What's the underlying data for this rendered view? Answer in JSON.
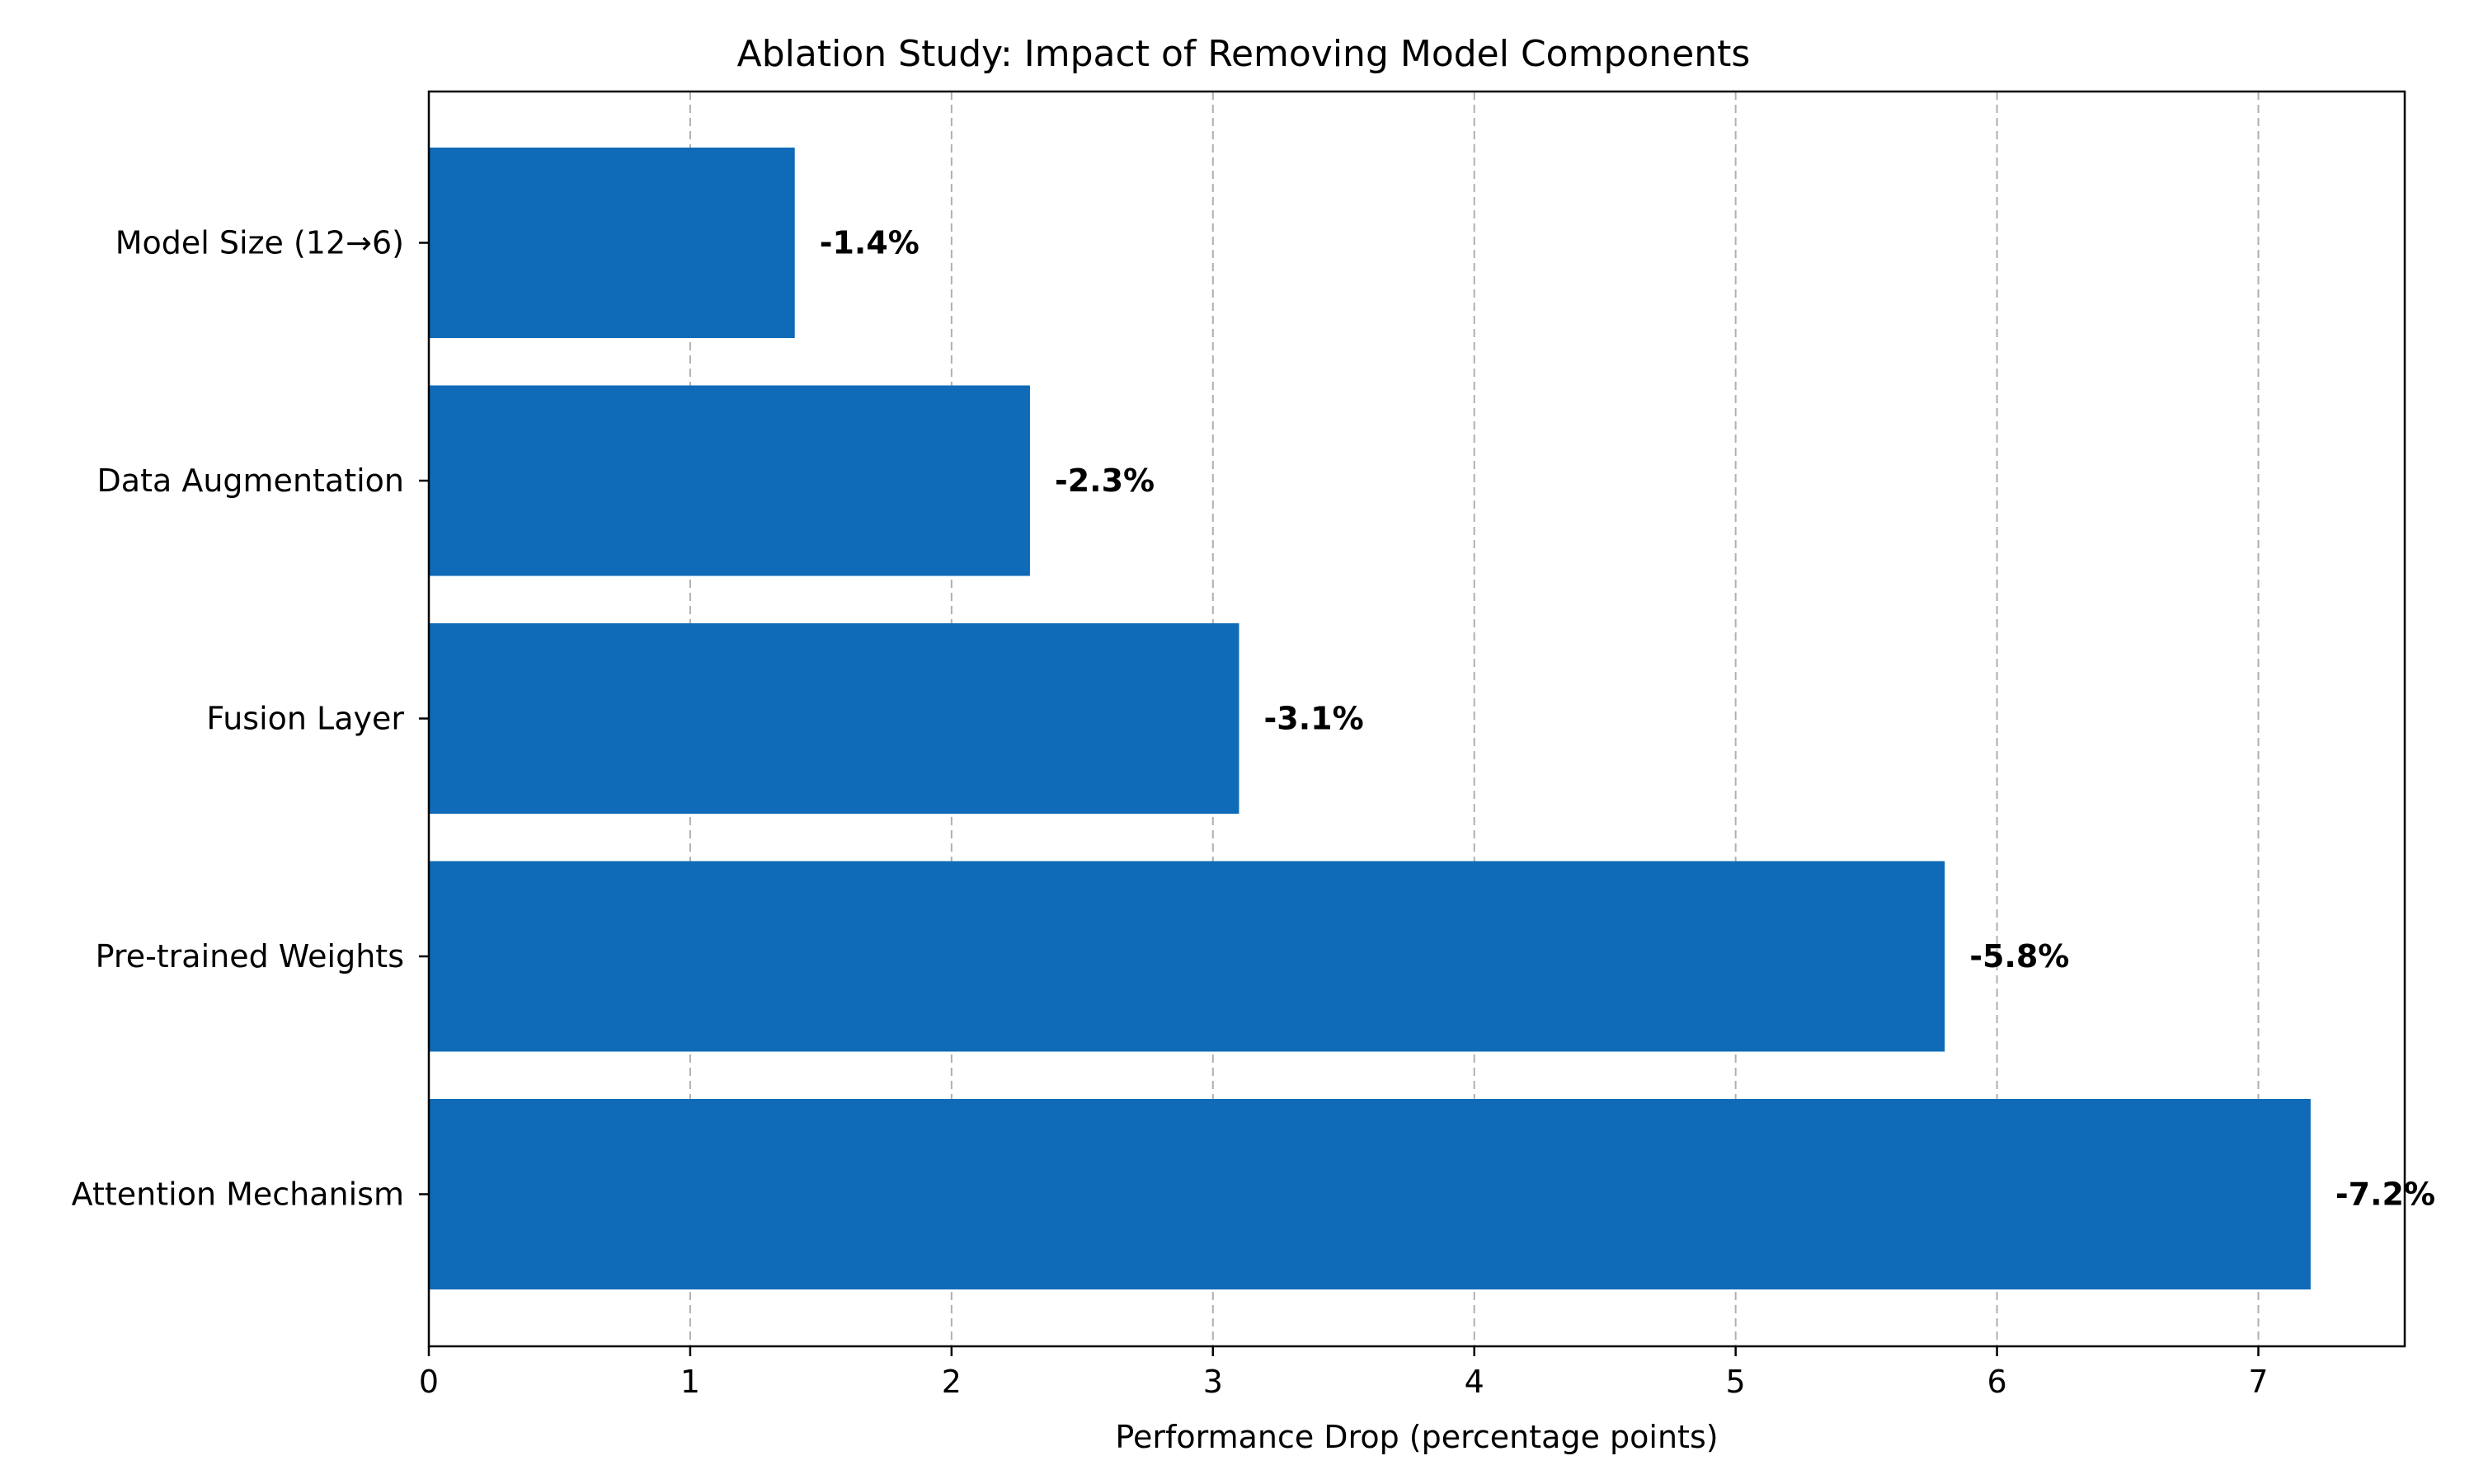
{
  "chart_data": {
    "type": "bar",
    "orientation": "horizontal",
    "title": "Ablation Study: Impact of Removing Model Components",
    "xlabel": "Performance Drop (percentage points)",
    "ylabel": "",
    "categories": [
      "Attention Mechanism",
      "Pre-trained Weights",
      "Fusion Layer",
      "Data Augmentation",
      "Model Size (12→6)"
    ],
    "values": [
      7.2,
      5.8,
      3.1,
      2.3,
      1.4
    ],
    "data_labels": [
      "-7.2%",
      "-5.8%",
      "-3.1%",
      "-2.3%",
      "-1.4%"
    ],
    "xlim": [
      0,
      7.56
    ],
    "xticks": [
      0,
      1,
      2,
      3,
      4,
      5,
      6,
      7
    ],
    "grid": "x-dashed",
    "bar_color": "#0f6ab7"
  }
}
